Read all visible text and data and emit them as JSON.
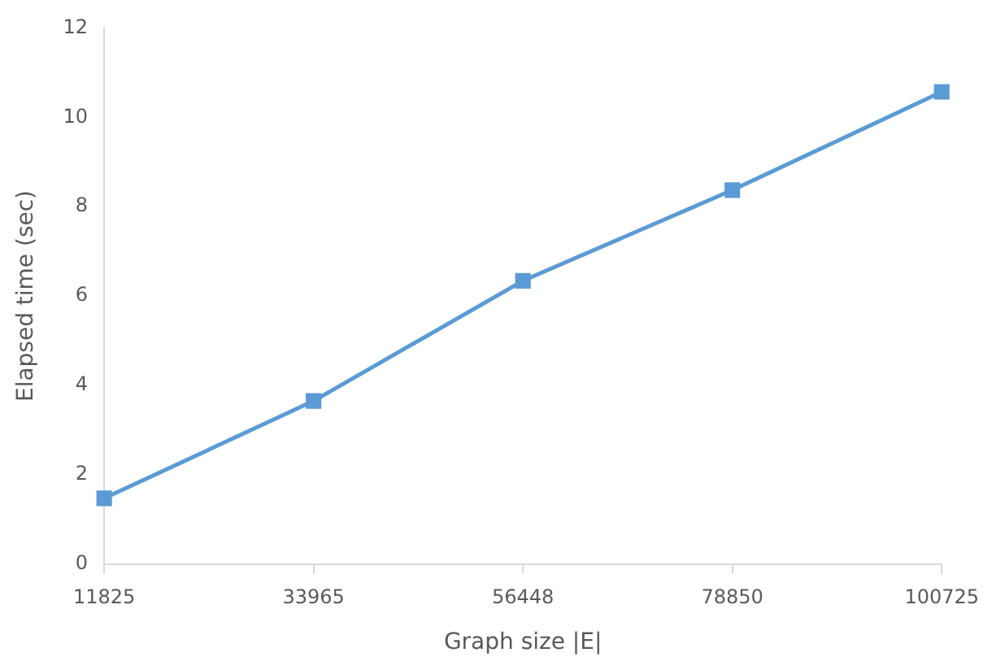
{
  "chart_data": {
    "type": "line",
    "xlabel": "Graph size |E|",
    "ylabel": "Elapsed time (sec)",
    "categories": [
      "11825",
      "33965",
      "56448",
      "78850",
      "100725"
    ],
    "series": [
      {
        "color": "#5b9bd5",
        "values": [
          1.47,
          3.65,
          6.34,
          8.37,
          10.57
        ]
      }
    ],
    "ylim": [
      0,
      12
    ],
    "yticks": [
      0,
      2,
      4,
      6,
      8,
      10,
      12
    ],
    "grid": false,
    "legend": false,
    "marker": "square",
    "line_style": "solid"
  }
}
